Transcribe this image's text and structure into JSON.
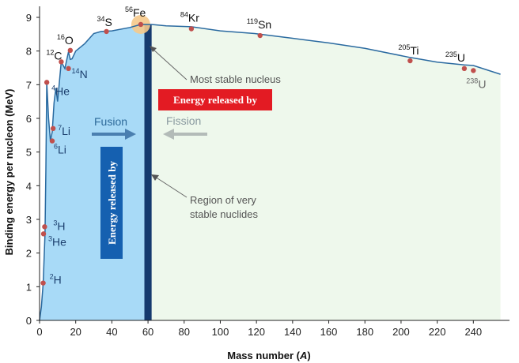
{
  "chart_data": {
    "type": "line",
    "title": "",
    "xlabel": "Mass number (",
    "xlabel_var": "A",
    "xlabel_end": ")",
    "ylabel": "Binding energy per nucleon (MeV)",
    "xlim": [
      0,
      260
    ],
    "ylim": [
      0,
      9
    ],
    "x_ticks": [
      0,
      20,
      40,
      60,
      80,
      100,
      120,
      140,
      160,
      180,
      200,
      220,
      240
    ],
    "y_ticks": [
      0,
      1,
      2,
      3,
      4,
      5,
      6,
      7,
      8,
      9
    ],
    "curve": {
      "x": [
        0,
        1,
        2,
        3,
        3.5,
        4,
        5,
        6,
        7,
        8,
        9,
        10,
        12,
        14,
        16,
        17,
        18,
        20,
        25,
        30,
        34,
        40,
        50,
        56,
        62,
        70,
        84,
        100,
        119,
        140,
        160,
        180,
        205,
        220,
        235,
        240,
        255
      ],
      "y": [
        0,
        0.4,
        1.11,
        2.57,
        4.5,
        7.07,
        6.0,
        5.33,
        5.6,
        6.46,
        6.9,
        6.5,
        7.68,
        7.48,
        7.98,
        7.75,
        7.77,
        8.0,
        8.22,
        8.52,
        8.58,
        8.6,
        8.7,
        8.79,
        8.79,
        8.75,
        8.72,
        8.6,
        8.52,
        8.38,
        8.24,
        8.08,
        7.81,
        7.67,
        7.59,
        7.57,
        7.31
      ]
    },
    "points": [
      {
        "iso": "2H",
        "mass": "2",
        "sym": "H",
        "x": 2,
        "y": 1.11
      },
      {
        "iso": "3He",
        "mass": "3",
        "sym": "He",
        "x": 2.2,
        "y": 2.57
      },
      {
        "iso": "3H",
        "mass": "3",
        "sym": "H",
        "x": 2.8,
        "y": 2.78
      },
      {
        "iso": "4He",
        "mass": "4",
        "sym": "He",
        "x": 4,
        "y": 7.07
      },
      {
        "iso": "6Li",
        "mass": "6",
        "sym": "Li",
        "x": 7,
        "y": 5.33
      },
      {
        "iso": "7Li",
        "mass": "7",
        "sym": "Li",
        "x": 7.5,
        "y": 5.7
      },
      {
        "iso": "12C",
        "mass": "12",
        "sym": "C",
        "x": 12,
        "y": 7.68
      },
      {
        "iso": "14N",
        "mass": "14",
        "sym": "N",
        "x": 16,
        "y": 7.48
      },
      {
        "iso": "16O",
        "mass": "16",
        "sym": "O",
        "x": 17,
        "y": 8.02
      },
      {
        "iso": "34S",
        "mass": "34",
        "sym": "S",
        "x": 37,
        "y": 8.58
      },
      {
        "iso": "56Fe",
        "mass": "56",
        "sym": "Fe",
        "x": 56,
        "y": 8.79
      },
      {
        "iso": "84Kr",
        "mass": "84",
        "sym": "Kr",
        "x": 84,
        "y": 8.66
      },
      {
        "iso": "119Sn",
        "mass": "119",
        "sym": "Sn",
        "x": 122,
        "y": 8.46
      },
      {
        "iso": "205Ti",
        "mass": "205",
        "sym": "Ti",
        "x": 205,
        "y": 7.71
      },
      {
        "iso": "235U",
        "mass": "235",
        "sym": "U",
        "x": 235,
        "y": 7.48
      },
      {
        "iso": "238U",
        "mass": "238",
        "sym": "U",
        "x": 240,
        "y": 7.42
      }
    ],
    "annotations": {
      "most_stable": "Most stable nucleus",
      "region_line1": "Region of very",
      "region_line2": "stable nuclides",
      "fusion": "Fusion",
      "fission": "Fission",
      "energy_fission": "Energy released by",
      "energy_fusion": "Energy released by"
    },
    "stable_region": [
      58,
      62
    ],
    "fusion_region": [
      0,
      58
    ],
    "fission_region": [
      62,
      260
    ],
    "colors": {
      "fusion_fill": "#a8daf7",
      "fission_fill": "#eef8ec",
      "stable_band": "#163a6e",
      "curve": "#2a6aa0",
      "points": "#c0504d",
      "fe_highlight": "#f6c98a",
      "fission_box": "#e31b23",
      "fusion_box": "#1560b0"
    }
  }
}
